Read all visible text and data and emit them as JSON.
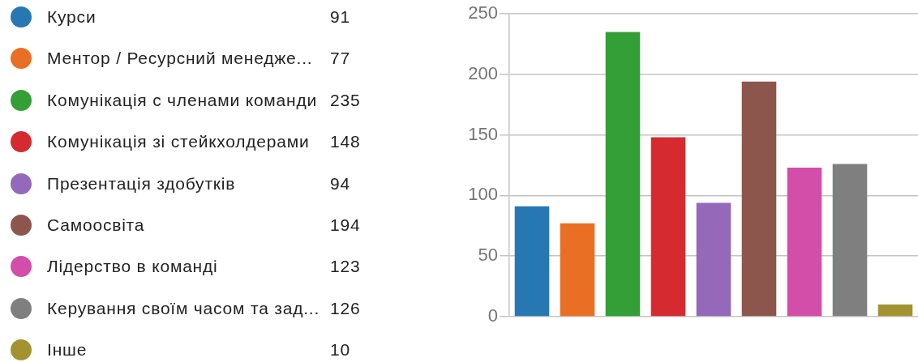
{
  "chart_data": {
    "type": "bar",
    "categories": [
      null
    ],
    "series": [
      {
        "name": "Курси",
        "color": "#2777b3",
        "values": [
          91
        ]
      },
      {
        "name": "Ментор / Ресурсний менедже...",
        "color": "#e96f24",
        "values": [
          77
        ]
      },
      {
        "name": "Комунікація с членами команди",
        "color": "#349f36",
        "values": [
          235
        ]
      },
      {
        "name": "Комунікація зі стейкхолдерами",
        "color": "#d42a30",
        "values": [
          148
        ]
      },
      {
        "name": "Презентація здобутків",
        "color": "#9469b9",
        "values": [
          94
        ]
      },
      {
        "name": "Самоосвіта",
        "color": "#8c564d",
        "values": [
          194
        ]
      },
      {
        "name": "Лідерство в команді",
        "color": "#d24ea8",
        "values": [
          123
        ]
      },
      {
        "name": "Керування своїм часом та зад...",
        "color": "#7f7f7f",
        "values": [
          126
        ]
      },
      {
        "name": "Інше",
        "color": "#a29330",
        "values": [
          10
        ]
      }
    ],
    "annotations": [
      "91",
      "77",
      "235",
      "148",
      "94",
      "194",
      "123",
      "126",
      "10"
    ],
    "ylim": [
      0,
      250
    ],
    "yticks": [
      0,
      50,
      100,
      150,
      200,
      250
    ],
    "grid": "y",
    "legend": "left",
    "tick_labels": "y"
  }
}
